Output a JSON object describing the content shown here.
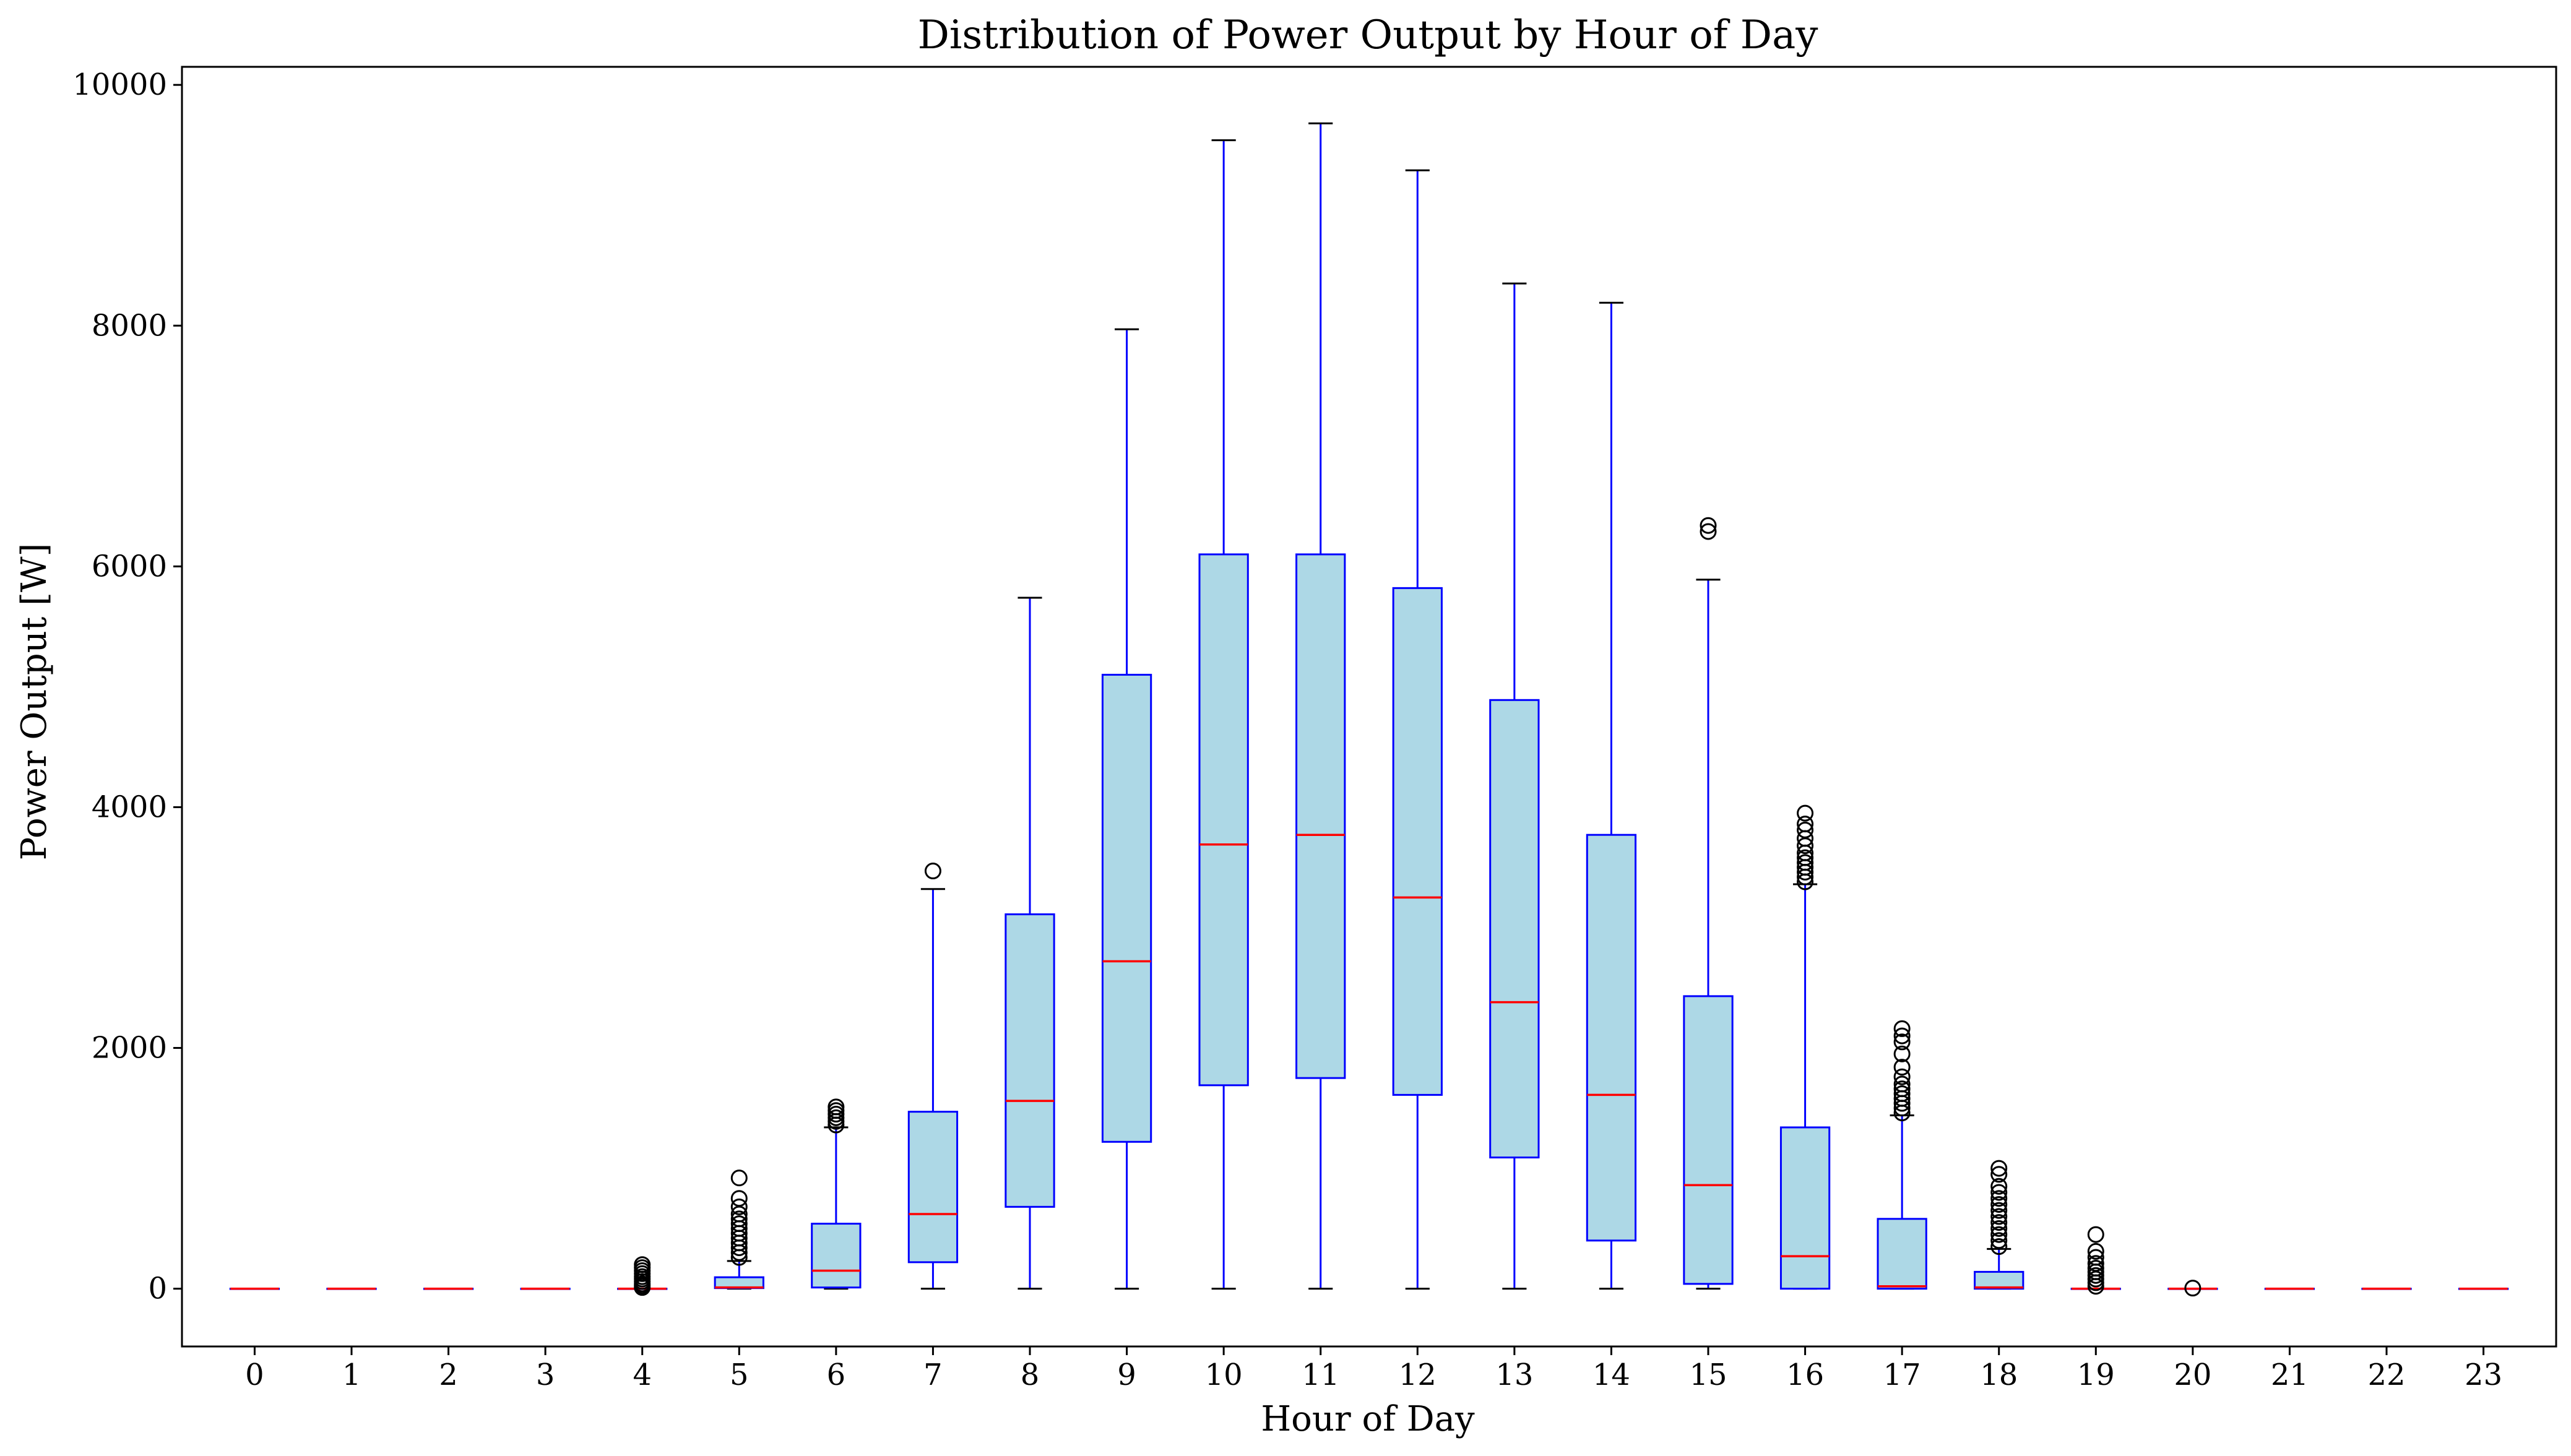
{
  "chart_data": {
    "type": "box",
    "title": "Distribution of Power Output by Hour of Day",
    "xlabel": "Hour of Day",
    "ylabel": "Power Output [W]",
    "ylim": [
      -480,
      10150
    ],
    "yticks": [
      0,
      2000,
      4000,
      6000,
      8000,
      10000
    ],
    "grid": false,
    "colors": {
      "box_fill": "#add8e6",
      "box_edge": "#0000ff",
      "median": "#ff0000",
      "cap": "#000000",
      "flier": "#000000"
    },
    "boxes": [
      {
        "x": "0",
        "q1": 0,
        "median": 0,
        "q3": 0,
        "whisker_low": 0,
        "whisker_high": 0,
        "fliers": []
      },
      {
        "x": "1",
        "q1": 0,
        "median": 0,
        "q3": 0,
        "whisker_low": 0,
        "whisker_high": 0,
        "fliers": []
      },
      {
        "x": "2",
        "q1": 0,
        "median": 0,
        "q3": 0,
        "whisker_low": 0,
        "whisker_high": 0,
        "fliers": []
      },
      {
        "x": "3",
        "q1": 0,
        "median": 0,
        "q3": 0,
        "whisker_low": 0,
        "whisker_high": 0,
        "fliers": []
      },
      {
        "x": "4",
        "q1": 0,
        "median": 0,
        "q3": 0,
        "whisker_low": 0,
        "whisker_high": 0,
        "fliers": [
          10,
          25,
          40,
          60,
          80,
          100,
          125,
          150,
          175,
          200
        ]
      },
      {
        "x": "5",
        "q1": 5,
        "median": 10,
        "q3": 95,
        "whisker_low": 0,
        "whisker_high": 230,
        "fliers": [
          260,
          300,
          340,
          380,
          420,
          460,
          500,
          540,
          580,
          620,
          680,
          750,
          920
        ]
      },
      {
        "x": "6",
        "q1": 10,
        "median": 150,
        "q3": 540,
        "whisker_low": 0,
        "whisker_high": 1340,
        "fliers": [
          1360,
          1390,
          1420,
          1450,
          1480,
          1510
        ]
      },
      {
        "x": "7",
        "q1": 220,
        "median": 620,
        "q3": 1470,
        "whisker_low": 0,
        "whisker_high": 3320,
        "fliers": [
          3470
        ]
      },
      {
        "x": "8",
        "q1": 680,
        "median": 1560,
        "q3": 3110,
        "whisker_low": 0,
        "whisker_high": 5740,
        "fliers": []
      },
      {
        "x": "9",
        "q1": 1220,
        "median": 2720,
        "q3": 5100,
        "whisker_low": 0,
        "whisker_high": 7970,
        "fliers": []
      },
      {
        "x": "10",
        "q1": 1690,
        "median": 3690,
        "q3": 6100,
        "whisker_low": 0,
        "whisker_high": 9540,
        "fliers": []
      },
      {
        "x": "11",
        "q1": 1750,
        "median": 3770,
        "q3": 6100,
        "whisker_low": 0,
        "whisker_high": 9680,
        "fliers": []
      },
      {
        "x": "12",
        "q1": 1610,
        "median": 3250,
        "q3": 5820,
        "whisker_low": 0,
        "whisker_high": 9290,
        "fliers": []
      },
      {
        "x": "13",
        "q1": 1090,
        "median": 2380,
        "q3": 4890,
        "whisker_low": 0,
        "whisker_high": 8350,
        "fliers": []
      },
      {
        "x": "14",
        "q1": 400,
        "median": 1610,
        "q3": 3770,
        "whisker_low": 0,
        "whisker_high": 8190,
        "fliers": []
      },
      {
        "x": "15",
        "q1": 40,
        "median": 860,
        "q3": 2430,
        "whisker_low": 0,
        "whisker_high": 5890,
        "fliers": [
          6290,
          6340
        ]
      },
      {
        "x": "16",
        "q1": 0,
        "median": 270,
        "q3": 1340,
        "whisker_low": 0,
        "whisker_high": 3360,
        "fliers": [
          3380,
          3420,
          3460,
          3500,
          3540,
          3580,
          3620,
          3680,
          3740,
          3810,
          3860,
          3950
        ]
      },
      {
        "x": "17",
        "q1": 0,
        "median": 20,
        "q3": 580,
        "whisker_low": 0,
        "whisker_high": 1440,
        "fliers": [
          1460,
          1500,
          1540,
          1580,
          1620,
          1660,
          1700,
          1760,
          1840,
          1950,
          2050,
          2100,
          2160
        ]
      },
      {
        "x": "18",
        "q1": 0,
        "median": 10,
        "q3": 140,
        "whisker_low": 0,
        "whisker_high": 330,
        "fliers": [
          350,
          400,
          450,
          500,
          550,
          600,
          650,
          700,
          750,
          800,
          850,
          950,
          1000
        ]
      },
      {
        "x": "19",
        "q1": 0,
        "median": 0,
        "q3": 0,
        "whisker_low": 0,
        "whisker_high": 0,
        "fliers": [
          20,
          50,
          80,
          110,
          140,
          170,
          210,
          260,
          310,
          450
        ]
      },
      {
        "x": "20",
        "q1": 0,
        "median": 0,
        "q3": 0,
        "whisker_low": 0,
        "whisker_high": 0,
        "fliers": [
          5
        ]
      },
      {
        "x": "21",
        "q1": 0,
        "median": 0,
        "q3": 0,
        "whisker_low": 0,
        "whisker_high": 0,
        "fliers": []
      },
      {
        "x": "22",
        "q1": 0,
        "median": 0,
        "q3": 0,
        "whisker_low": 0,
        "whisker_high": 0,
        "fliers": []
      },
      {
        "x": "23",
        "q1": 0,
        "median": 0,
        "q3": 0,
        "whisker_low": 0,
        "whisker_high": 0,
        "fliers": []
      }
    ]
  }
}
